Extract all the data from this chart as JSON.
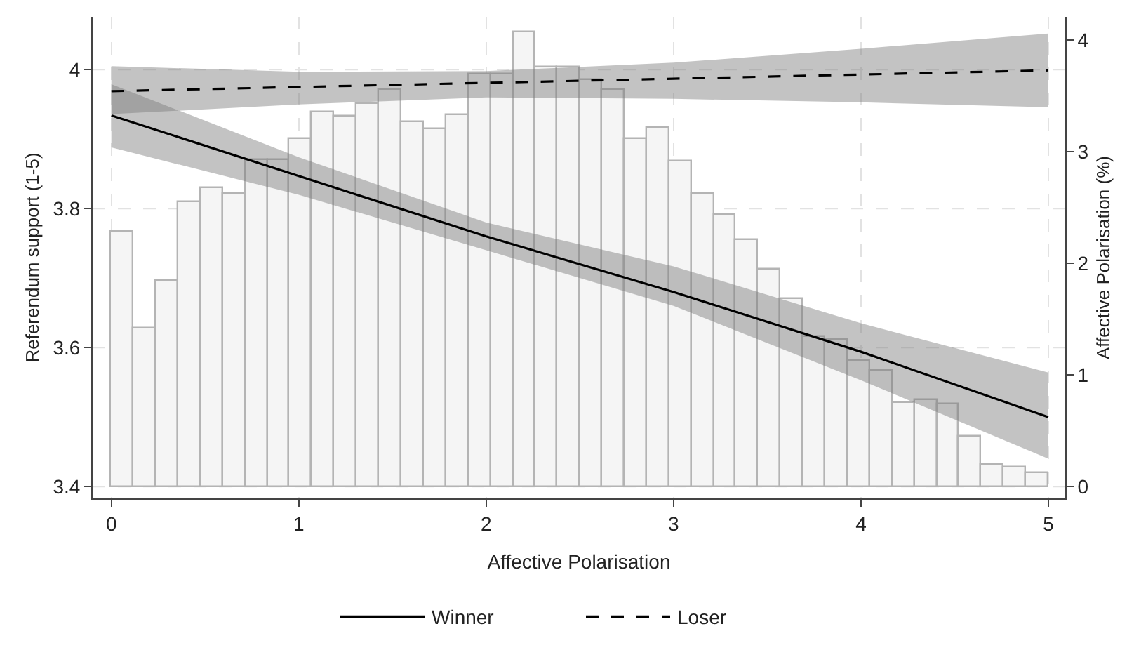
{
  "chart_data": {
    "type": "line",
    "xlabel": "Affective Polarisation",
    "ylabel": "Referendum support (1-5)",
    "y2label": "Affective Polarisation (%)",
    "xlim": [
      -0.1,
      5.09
    ],
    "xticks": [
      0,
      1,
      2,
      3,
      4,
      5
    ],
    "ylim": [
      3.383,
      4.076
    ],
    "yticks": [
      3.4,
      3.6,
      3.8,
      4
    ],
    "y2lim": [
      -0.106,
      4.21
    ],
    "y2ticks": [
      0,
      1,
      2,
      3,
      4
    ],
    "grid": true,
    "legend": "bottom",
    "marker": "none",
    "series": [
      {
        "type": "histogram",
        "axis": "y2",
        "color": "#f5f5f5",
        "bins": [
          0,
          0.119,
          0.238,
          0.357,
          0.476,
          0.595,
          0.714,
          0.833,
          0.952,
          1.071,
          1.19,
          1.31,
          1.429,
          1.548,
          1.667,
          1.786,
          1.905,
          2.024,
          2.143,
          2.262,
          2.381,
          2.5,
          2.619,
          2.738,
          2.857,
          2.976,
          3.095,
          3.214,
          3.333,
          3.452,
          3.571,
          3.69,
          3.81,
          3.929,
          4.048,
          4.167,
          4.286,
          4.405,
          4.524,
          4.643,
          4.762,
          4.881,
          5
        ],
        "values": [
          2.29,
          1.42,
          1.85,
          2.55,
          2.68,
          2.63,
          2.93,
          2.93,
          3.12,
          3.35,
          3.32,
          3.43,
          3.55,
          3.27,
          3.2,
          3.33,
          3.7,
          3.7,
          4.07,
          3.76,
          3.76,
          3.65,
          3.56,
          3.12,
          3.21,
          2.92,
          2.63,
          2.43,
          2.21,
          1.94,
          1.68,
          1.34,
          1.31,
          1.13,
          1.04,
          0.75,
          0.78,
          0.74,
          0.45,
          0.2,
          0.17,
          0.12
        ]
      },
      {
        "name": "Winner",
        "color": "#000000",
        "line_style": "solid",
        "x": [
          0,
          1,
          2,
          3,
          4,
          5
        ],
        "values": [
          3.934,
          3.847,
          3.76,
          3.68,
          3.594,
          3.5
        ],
        "lower": [
          3.888,
          3.82,
          3.74,
          3.66,
          3.553,
          3.44
        ],
        "upper": [
          3.979,
          3.874,
          3.78,
          3.717,
          3.635,
          3.564
        ]
      },
      {
        "name": "Loser",
        "color": "#000000",
        "line_style": "dashed",
        "x": [
          0,
          1,
          2,
          3,
          4,
          5
        ],
        "values": [
          3.969,
          3.975,
          3.981,
          3.987,
          3.993,
          3.999
        ],
        "lower": [
          3.936,
          3.95,
          3.96,
          3.958,
          3.953,
          3.946
        ],
        "upper": [
          4.005,
          3.997,
          3.998,
          4.01,
          4.03,
          4.052
        ]
      }
    ]
  }
}
